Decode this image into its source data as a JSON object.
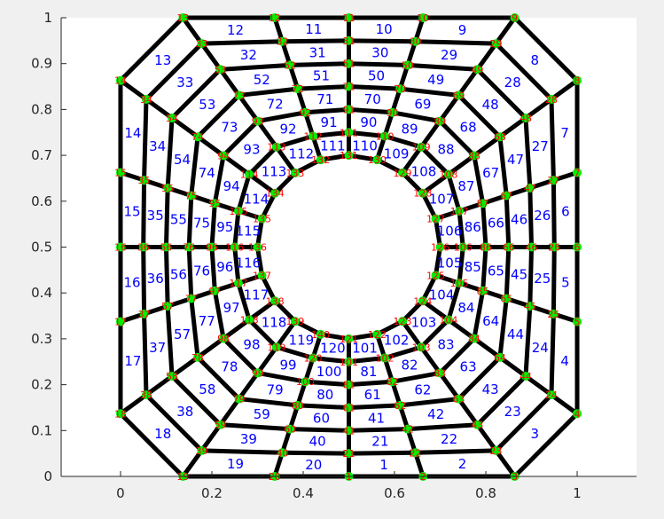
{
  "chart_data": {
    "type": "mesh",
    "xlim": [
      -0.13,
      1.13
    ],
    "ylim": [
      0,
      1
    ],
    "x_ticks": [
      "0",
      "0.2",
      "0.4",
      "0.6",
      "0.8",
      "1"
    ],
    "y_ticks": [
      "0",
      "0.1",
      "0.2",
      "0.3",
      "0.4",
      "0.5",
      "0.6",
      "0.7",
      "0.8",
      "0.9",
      "1"
    ],
    "hole": {
      "center": [
        0.5,
        0.5
      ],
      "radius": 0.2
    },
    "rings": 6,
    "sectors": 20,
    "element_labels": "1-100",
    "node_labels": "1-120",
    "colors": {
      "mesh": "#000000",
      "node": "#00ee00",
      "element_label": "#0000ff",
      "node_label": "#ff0000",
      "axes": "#262626",
      "plot_bg": "#ffffff",
      "figure_bg": "#f0f0f0"
    }
  }
}
